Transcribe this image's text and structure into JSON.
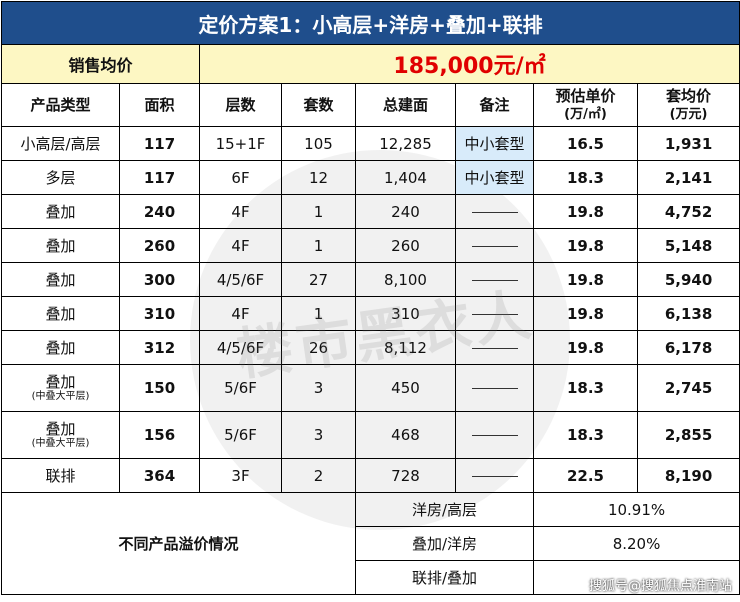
{
  "title": "定价方案1：小高层+洋房+叠加+联排",
  "sales": {
    "label": "销售均价",
    "value": "185,000元/㎡"
  },
  "headers": {
    "type": "产品类型",
    "area": "面积",
    "floors": "层数",
    "units": "套数",
    "gfa": "总建面",
    "note": "备注",
    "unit_price_1": "预估单价",
    "unit_price_2": "(万/㎡)",
    "total_price_1": "套均价",
    "total_price_2": "(万元)"
  },
  "rows": [
    {
      "type": "小高层/高层",
      "sub": "",
      "area": "117",
      "floors": "15+1F",
      "units": "105",
      "gfa": "12,285",
      "note": "中小套型",
      "price": "16.5",
      "total": "1,931"
    },
    {
      "type": "多层",
      "sub": "",
      "area": "117",
      "floors": "6F",
      "units": "12",
      "gfa": "1,404",
      "note": "中小套型",
      "price": "18.3",
      "total": "2,141"
    },
    {
      "type": "叠加",
      "sub": "",
      "area": "240",
      "floors": "4F",
      "units": "1",
      "gfa": "240",
      "note": "",
      "price": "19.8",
      "total": "4,752"
    },
    {
      "type": "叠加",
      "sub": "",
      "area": "260",
      "floors": "4F",
      "units": "1",
      "gfa": "260",
      "note": "",
      "price": "19.8",
      "total": "5,148"
    },
    {
      "type": "叠加",
      "sub": "",
      "area": "300",
      "floors": "4/5/6F",
      "units": "27",
      "gfa": "8,100",
      "note": "",
      "price": "19.8",
      "total": "5,940"
    },
    {
      "type": "叠加",
      "sub": "",
      "area": "310",
      "floors": "4F",
      "units": "1",
      "gfa": "310",
      "note": "",
      "price": "19.8",
      "total": "6,138"
    },
    {
      "type": "叠加",
      "sub": "",
      "area": "312",
      "floors": "4/5/6F",
      "units": "26",
      "gfa": "8,112",
      "note": "",
      "price": "19.8",
      "total": "6,178"
    },
    {
      "type": "叠加",
      "sub": "(中叠大平层)",
      "area": "150",
      "floors": "5/6F",
      "units": "3",
      "gfa": "450",
      "note": "",
      "price": "18.3",
      "total": "2,745"
    },
    {
      "type": "叠加",
      "sub": "(中叠大平层)",
      "area": "156",
      "floors": "5/6F",
      "units": "3",
      "gfa": "468",
      "note": "",
      "price": "18.3",
      "total": "2,855"
    },
    {
      "type": "联排",
      "sub": "",
      "area": "364",
      "floors": "3F",
      "units": "2",
      "gfa": "728",
      "note": "",
      "price": "22.5",
      "total": "8,190"
    }
  ],
  "premium": {
    "label": "不同产品溢价情况",
    "items": [
      {
        "label": "洋房/高层",
        "value": "10.91%"
      },
      {
        "label": "叠加/洋房",
        "value": "8.20%"
      },
      {
        "label": "联排/叠加",
        "value": ""
      }
    ]
  },
  "watermark": "楼市黑衣人",
  "footer": "搜狐号@搜狐焦点淮南站"
}
